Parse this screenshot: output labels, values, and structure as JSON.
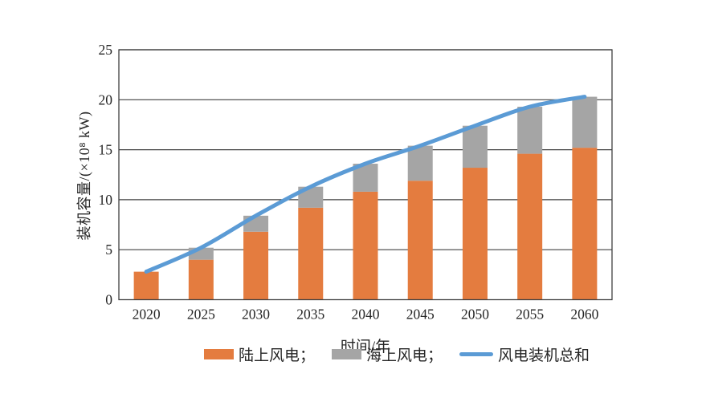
{
  "chart": {
    "y_axis_title": "装机容量/(×10⁸ kW)",
    "x_axis_title": "时间/年",
    "legend": [
      {
        "label": "陆上风电；",
        "swatch": "rect",
        "color": "#E47C3F"
      },
      {
        "label": "海上风电；",
        "swatch": "rect",
        "color": "#A5A5A5"
      },
      {
        "label": "风电装机总和",
        "swatch": "line",
        "color": "#5B9BD5"
      }
    ]
  },
  "chart_data": {
    "type": "bar",
    "subtype": "stacked-bar-with-line",
    "categories": [
      "2020",
      "2025",
      "2030",
      "2035",
      "2040",
      "2045",
      "2050",
      "2055",
      "2060"
    ],
    "series": [
      {
        "name": "陆上风电",
        "kind": "bar",
        "stack": "wind",
        "color": "#E47C3F",
        "values": [
          2.8,
          4.0,
          6.8,
          9.2,
          10.8,
          11.9,
          13.2,
          14.6,
          15.2
        ]
      },
      {
        "name": "海上风电",
        "kind": "bar",
        "stack": "wind",
        "color": "#A5A5A5",
        "values": [
          0,
          1.2,
          1.6,
          2.1,
          2.8,
          3.5,
          4.2,
          4.7,
          5.1
        ]
      },
      {
        "name": "风电装机总和",
        "kind": "line",
        "color": "#5B9BD5",
        "values": [
          2.8,
          5.2,
          8.4,
          11.3,
          13.6,
          15.4,
          17.4,
          19.3,
          20.3
        ]
      }
    ],
    "title": "",
    "xlabel": "时间/年",
    "ylabel": "装机容量/(×10⁸ kW)",
    "ylim": [
      0,
      25
    ],
    "yticks": [
      0,
      5,
      10,
      15,
      20,
      25
    ],
    "grid": true,
    "grid_color": "#404040",
    "tick_label_color": "#262626",
    "legend_position": "bottom"
  }
}
